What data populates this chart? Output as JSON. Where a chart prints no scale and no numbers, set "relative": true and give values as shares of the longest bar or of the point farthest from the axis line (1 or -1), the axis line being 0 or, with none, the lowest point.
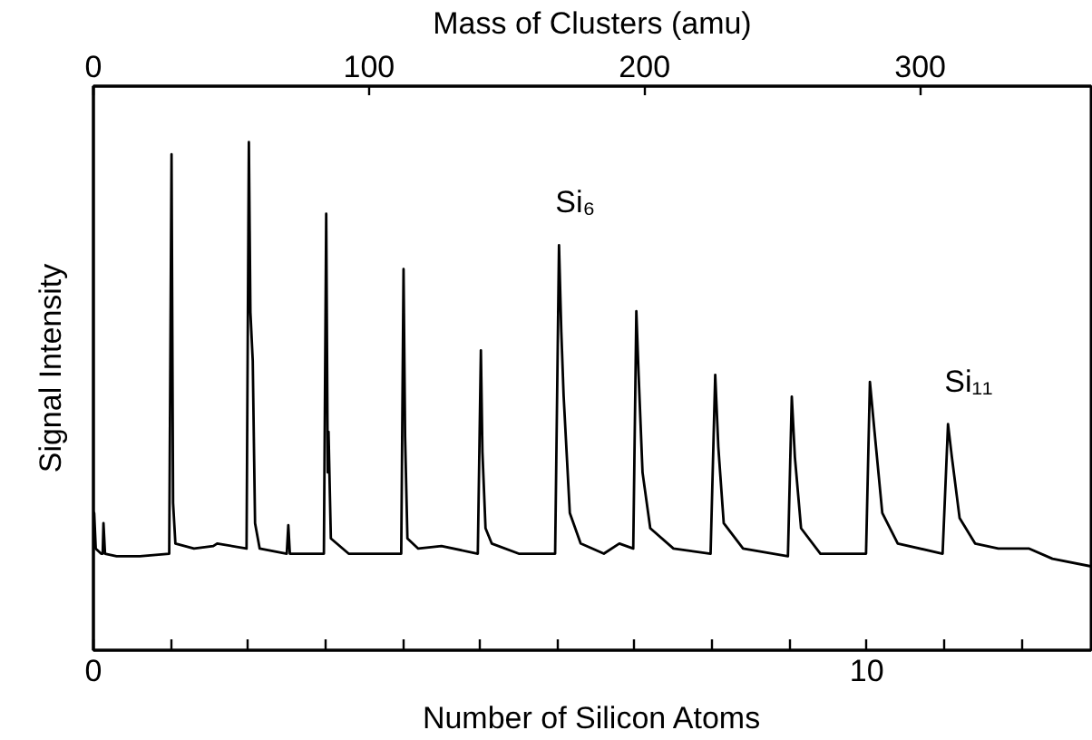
{
  "chart_data": {
    "type": "line",
    "relative": true,
    "xlabel": "Number of Silicon Atoms",
    "ylabel": "Signal Intensity",
    "x2label": "Mass of Clusters (amu)",
    "xlim": [
      0,
      12.9
    ],
    "xticks": [
      0,
      {
        "value": 1,
        "label": null
      },
      {
        "value": 2,
        "label": null
      },
      {
        "value": 3,
        "label": null
      },
      {
        "value": 4,
        "label": null
      },
      {
        "value": 5,
        "label": null
      },
      {
        "value": 6,
        "label": null
      },
      {
        "value": 7,
        "label": null
      },
      {
        "value": 8,
        "label": null
      },
      {
        "value": 9,
        "label": null
      },
      10,
      {
        "value": 11,
        "label": null
      },
      {
        "value": 12,
        "label": null
      }
    ],
    "x2lim": [
      0,
      362
    ],
    "x2ticks": [
      0,
      100,
      200,
      300
    ],
    "annotations": [
      {
        "text": "Si₆",
        "x": 6.02,
        "y": 0.797
      },
      {
        "text": "Si₁₁",
        "x": 11.05,
        "y": 0.445
      }
    ],
    "grid": false,
    "marker": "none",
    "line_style": "solid",
    "series": [
      {
        "color": "#000000",
        "x": [
          0.0,
          0.01,
          0.03,
          0.1,
          0.12,
          0.13,
          0.15,
          0.3,
          0.6,
          0.98,
          1.01,
          1.03,
          1.06,
          1.3,
          1.55,
          1.6,
          1.98,
          2.01,
          2.03,
          2.06,
          2.09,
          2.15,
          2.5,
          2.52,
          2.54,
          2.98,
          3.01,
          3.03,
          3.04,
          3.07,
          3.3,
          3.98,
          4.01,
          4.03,
          4.06,
          4.2,
          4.5,
          4.97,
          5.01,
          5.03,
          5.07,
          5.15,
          5.5,
          5.97,
          6.02,
          6.05,
          6.08,
          6.16,
          6.3,
          6.6,
          6.8,
          6.98,
          7.02,
          7.05,
          7.1,
          7.2,
          7.5,
          7.98,
          8.04,
          8.08,
          8.15,
          8.4,
          8.98,
          9.03,
          9.07,
          9.15,
          9.4,
          9.99,
          10.04,
          10.1,
          10.2,
          10.4,
          10.98,
          11.05,
          11.1,
          11.2,
          11.4,
          11.7,
          12.1,
          12.4,
          12.9
        ],
        "values": [
          0.2,
          0.27,
          0.2,
          0.19,
          0.19,
          0.25,
          0.19,
          0.185,
          0.185,
          0.19,
          0.976,
          0.29,
          0.21,
          0.2,
          0.205,
          0.21,
          0.2,
          1.0,
          0.665,
          0.57,
          0.25,
          0.2,
          0.19,
          0.246,
          0.19,
          0.19,
          0.859,
          0.35,
          0.43,
          0.22,
          0.19,
          0.19,
          0.75,
          0.42,
          0.22,
          0.2,
          0.205,
          0.19,
          0.59,
          0.39,
          0.24,
          0.21,
          0.19,
          0.19,
          0.797,
          0.626,
          0.5,
          0.27,
          0.21,
          0.19,
          0.21,
          0.2,
          0.667,
          0.54,
          0.35,
          0.24,
          0.2,
          0.19,
          0.542,
          0.4,
          0.25,
          0.2,
          0.185,
          0.499,
          0.38,
          0.24,
          0.19,
          0.19,
          0.528,
          0.43,
          0.27,
          0.21,
          0.19,
          0.445,
          0.38,
          0.26,
          0.21,
          0.2,
          0.2,
          0.18,
          0.165
        ]
      }
    ]
  }
}
